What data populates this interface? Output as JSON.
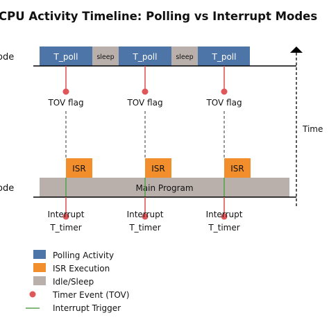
{
  "title": "CPU Activity Timeline: Polling vs Interrupt Modes",
  "polling_row_label": "ode",
  "interrupt_row_label": "ode",
  "time_label": "Time",
  "polling_blocks": [
    {
      "label": "T_poll",
      "kind": "poll"
    },
    {
      "label": "sleep",
      "kind": "sleep"
    },
    {
      "label": "T_poll",
      "kind": "poll"
    },
    {
      "label": "sleep",
      "kind": "sleep"
    },
    {
      "label": "T_poll",
      "kind": "poll"
    }
  ],
  "tov_flag_label": "TOV flag",
  "isr_label": "ISR",
  "main_program_label": "Main Program",
  "interrupt_label": "Interrupt",
  "timer_label": "T_timer",
  "legend": [
    {
      "label": "Polling Activity",
      "symbol": "poll"
    },
    {
      "label": "ISR Execution",
      "symbol": "isr"
    },
    {
      "label": "Idle/Sleep",
      "symbol": "sleep"
    },
    {
      "label": "Timer Event (TOV)",
      "symbol": "event"
    },
    {
      "label": "Interrupt Trigger",
      "symbol": "trigger"
    }
  ],
  "colors": {
    "poll": "#4e75a8",
    "isr": "#f28e2b",
    "sleep": "#bab0ab",
    "event": "#e15759",
    "trigger": "#59a14f",
    "axis": "#000000"
  }
}
